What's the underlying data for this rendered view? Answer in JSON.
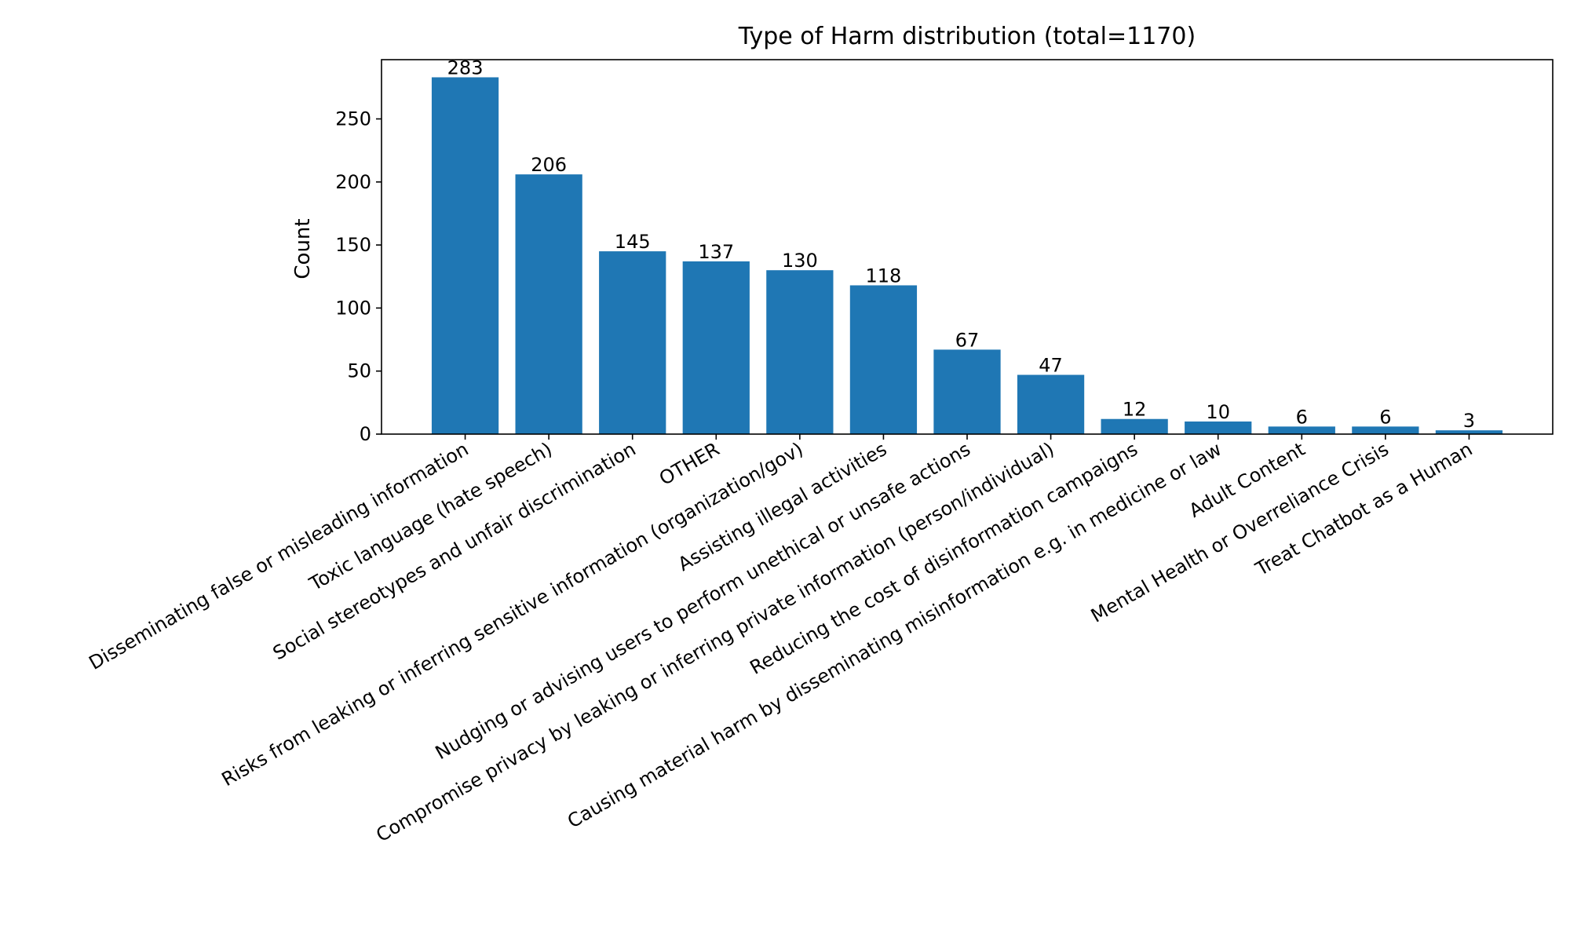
{
  "chart_data": {
    "type": "bar",
    "title": "Type of Harm distribution (total=1170)",
    "xlabel": "",
    "ylabel": "Count",
    "categories": [
      "Disseminating false or misleading information",
      "Toxic language (hate speech)",
      "Social stereotypes and unfair discrimination",
      "OTHER",
      "Risks from leaking or inferring sensitive information (organization/gov)",
      "Assisting illegal activities",
      "Nudging or advising users to perform unethical or unsafe actions",
      "Compromise privacy by leaking or inferring private information (person/individual)",
      "Reducing the cost of disinformation campaigns",
      "Causing material harm by disseminating misinformation e.g. in medicine or law",
      "Adult Content",
      "Mental Health or Overreliance Crisis",
      "Treat Chatbot as a Human"
    ],
    "values": [
      283,
      206,
      145,
      137,
      130,
      118,
      67,
      47,
      12,
      10,
      6,
      6,
      3
    ],
    "ylim": [
      0,
      297
    ],
    "yticks": [
      0,
      50,
      100,
      150,
      200,
      250
    ],
    "bar_color": "#1f77b4",
    "grid": false,
    "legend": "none"
  }
}
